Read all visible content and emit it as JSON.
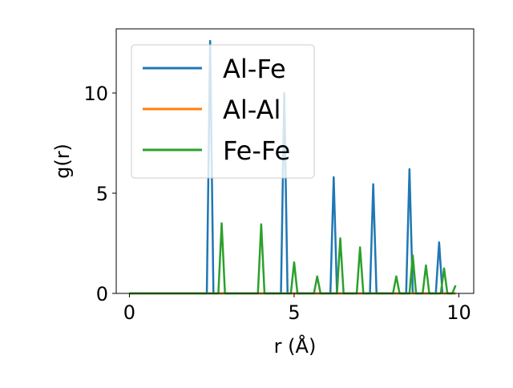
{
  "chart_data": {
    "type": "line",
    "xlabel": "r (Å)",
    "ylabel": "g(r)",
    "xlim": [
      -0.4,
      10.45
    ],
    "ylim": [
      0,
      13.2
    ],
    "xticks": [
      0,
      5,
      10
    ],
    "yticks": [
      0,
      5,
      10
    ],
    "xtick_labels": [
      "0",
      "5",
      "10"
    ],
    "ytick_labels": [
      "0",
      "5",
      "10"
    ],
    "grid": false,
    "legend_position": "top-left",
    "series": [
      {
        "name": "Al-Fe",
        "color": "#1f77b4",
        "x": [
          0,
          2.35,
          2.45,
          2.55,
          4.6,
          4.7,
          4.8,
          6.1,
          6.2,
          6.3,
          7.3,
          7.4,
          7.5,
          8.4,
          8.5,
          8.6,
          9.3,
          9.4,
          9.5,
          9.9
        ],
        "y": [
          0,
          0,
          12.6,
          0,
          0,
          10.0,
          0,
          0,
          5.8,
          0,
          0,
          5.45,
          0,
          0,
          6.2,
          0,
          0,
          2.55,
          0,
          0
        ]
      },
      {
        "name": "Al-Al",
        "color": "#ff7f0e",
        "x": [
          0,
          9.9
        ],
        "y": [
          0,
          0
        ]
      },
      {
        "name": "Fe-Fe",
        "color": "#2ca02c",
        "x": [
          0,
          2.7,
          2.8,
          2.9,
          3.9,
          4.0,
          4.1,
          4.9,
          5.0,
          5.1,
          5.6,
          5.7,
          5.8,
          6.3,
          6.4,
          6.5,
          6.9,
          7.0,
          7.1,
          8.0,
          8.1,
          8.2,
          8.5,
          8.6,
          8.7,
          8.9,
          9.0,
          9.1,
          9.45,
          9.55,
          9.65,
          9.8,
          9.9
        ],
        "y": [
          0,
          0,
          3.5,
          0,
          0,
          3.45,
          0,
          0,
          1.55,
          0,
          0,
          0.85,
          0,
          0,
          2.75,
          0,
          0,
          2.3,
          0,
          0,
          0.85,
          0,
          0,
          1.9,
          0,
          0,
          1.4,
          0,
          0,
          1.25,
          0,
          0,
          0.4
        ]
      }
    ]
  }
}
